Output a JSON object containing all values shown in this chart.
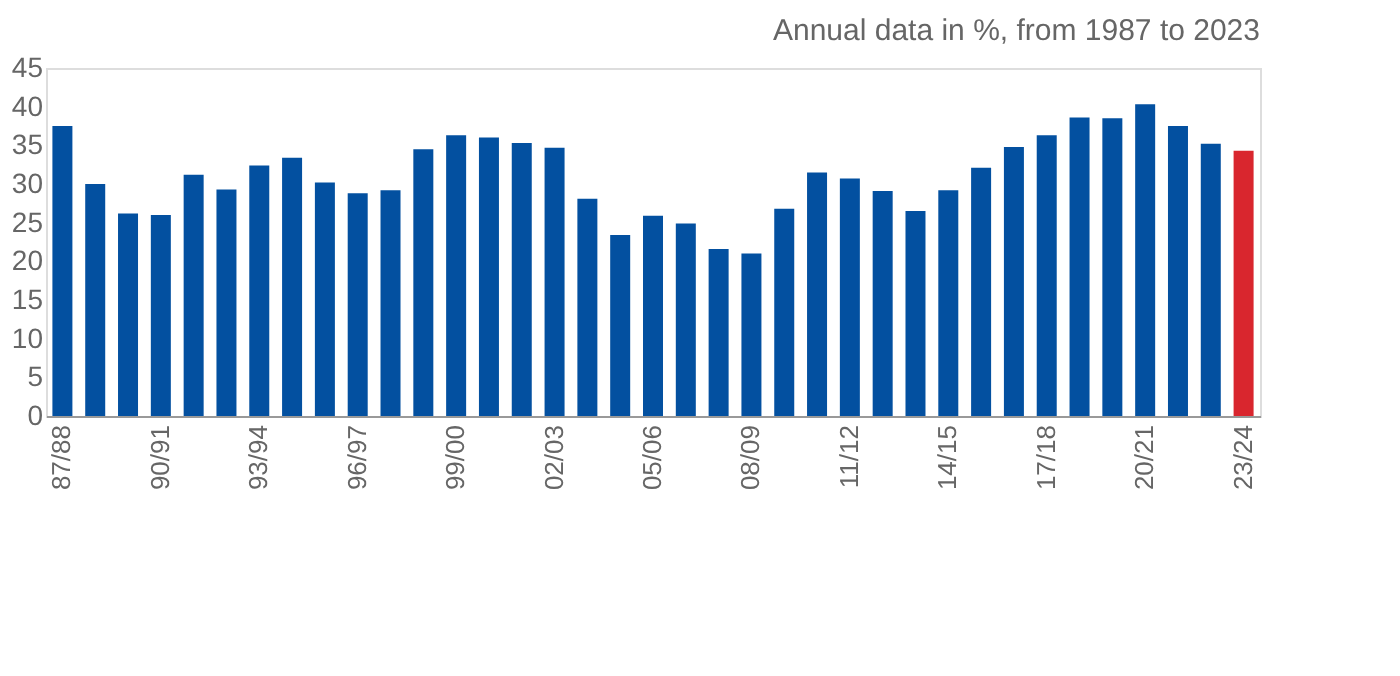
{
  "chart_data": {
    "type": "bar",
    "title": "Annual data in %, from 1987 to 2023",
    "categories": [
      "87/88",
      null,
      null,
      "90/91",
      null,
      null,
      "93/94",
      null,
      null,
      "96/97",
      null,
      null,
      "99/00",
      null,
      null,
      "02/03",
      null,
      null,
      "05/06",
      null,
      null,
      "08/09",
      null,
      null,
      "11/12",
      null,
      null,
      "14/15",
      null,
      null,
      "17/18",
      null,
      null,
      "20/21",
      null,
      null,
      "23/24"
    ],
    "values": [
      37.5,
      30,
      26.2,
      26,
      31.2,
      29.3,
      32.4,
      33.4,
      30.2,
      28.8,
      29.2,
      34.5,
      36.3,
      36,
      35.3,
      34.7,
      28.1,
      23.4,
      25.9,
      24.9,
      21.6,
      21,
      26.8,
      31.5,
      30.7,
      29.1,
      26.5,
      29.2,
      32.1,
      34.8,
      36.3,
      38.6,
      38.5,
      40.3,
      37.5,
      35.2,
      34.3
    ],
    "colors": [
      "#0350a0",
      "#0350a0",
      "#0350a0",
      "#0350a0",
      "#0350a0",
      "#0350a0",
      "#0350a0",
      "#0350a0",
      "#0350a0",
      "#0350a0",
      "#0350a0",
      "#0350a0",
      "#0350a0",
      "#0350a0",
      "#0350a0",
      "#0350a0",
      "#0350a0",
      "#0350a0",
      "#0350a0",
      "#0350a0",
      "#0350a0",
      "#0350a0",
      "#0350a0",
      "#0350a0",
      "#0350a0",
      "#0350a0",
      "#0350a0",
      "#0350a0",
      "#0350a0",
      "#0350a0",
      "#0350a0",
      "#0350a0",
      "#0350a0",
      "#0350a0",
      "#0350a0",
      "#0350a0",
      "#d9262e"
    ],
    "ylim": [
      0,
      45
    ],
    "yticks": [
      0,
      5,
      10,
      15,
      20,
      25,
      30,
      35,
      40,
      45
    ],
    "grid": false
  }
}
